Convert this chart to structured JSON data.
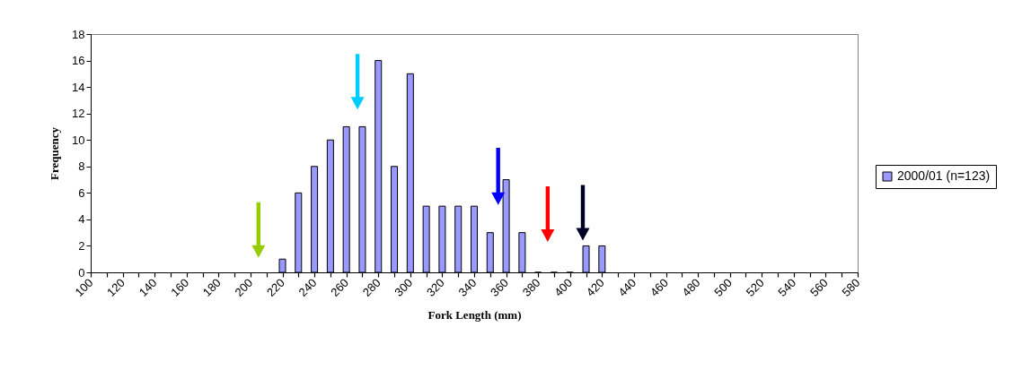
{
  "chart_data": {
    "type": "bar",
    "xlabel": "Fork Length (mm)",
    "ylabel": "Frequency",
    "x": [
      220,
      230,
      240,
      250,
      260,
      270,
      280,
      290,
      300,
      310,
      320,
      330,
      340,
      350,
      360,
      370,
      380,
      390,
      400,
      410,
      420
    ],
    "series": [
      {
        "name": "2000/01 (n=123)",
        "color": "#9999ff",
        "values": [
          1,
          6,
          8,
          10,
          11,
          11,
          16,
          8,
          15,
          5,
          5,
          5,
          5,
          3,
          7,
          3,
          0,
          0,
          0,
          2,
          2
        ]
      }
    ],
    "xlim": [
      100,
      580
    ],
    "xticks": [
      100,
      {
        "value": 110,
        "label": null
      },
      120,
      {
        "value": 130,
        "label": null
      },
      140,
      {
        "value": 150,
        "label": null
      },
      160,
      {
        "value": 170,
        "label": null
      },
      180,
      {
        "value": 190,
        "label": null
      },
      200,
      {
        "value": 210,
        "label": null
      },
      220,
      {
        "value": 230,
        "label": null
      },
      240,
      {
        "value": 250,
        "label": null
      },
      260,
      {
        "value": 270,
        "label": null
      },
      280,
      {
        "value": 290,
        "label": null
      },
      300,
      {
        "value": 310,
        "label": null
      },
      320,
      {
        "value": 330,
        "label": null
      },
      340,
      {
        "value": 350,
        "label": null
      },
      360,
      {
        "value": 370,
        "label": null
      },
      380,
      {
        "value": 390,
        "label": null
      },
      400,
      {
        "value": 410,
        "label": null
      },
      420,
      {
        "value": 430,
        "label": null
      },
      440,
      {
        "value": 450,
        "label": null
      },
      460,
      {
        "value": 470,
        "label": null
      },
      480,
      {
        "value": 490,
        "label": null
      },
      500,
      {
        "value": 510,
        "label": null
      },
      520,
      {
        "value": 530,
        "label": null
      },
      540,
      {
        "value": 550,
        "label": null
      },
      560,
      {
        "value": 570,
        "label": null
      },
      580
    ],
    "ylim": [
      0,
      18
    ],
    "yticks": [
      0,
      2,
      4,
      6,
      8,
      10,
      12,
      14,
      16,
      18
    ],
    "grid": false,
    "legend": "right"
  }
}
